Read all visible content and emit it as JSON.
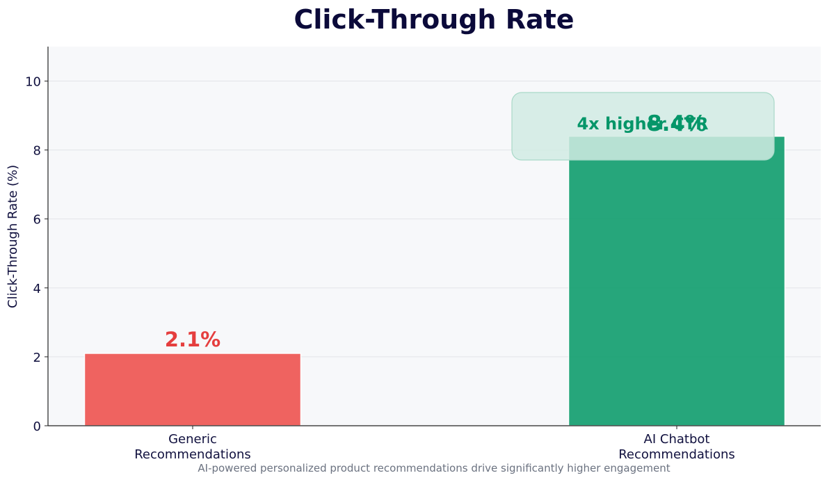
{
  "chart_data": {
    "type": "bar",
    "title": "Click-Through Rate",
    "subtitle": "AI-powered personalized product recommendations drive significantly higher engagement",
    "xlabel": "",
    "ylabel": "Click-Through Rate (%)",
    "ylim": [
      0,
      11
    ],
    "yticks": [
      0,
      2,
      4,
      6,
      8,
      10
    ],
    "grid": true,
    "categories": [
      "Generic\nRecommendations",
      "AI Chatbot\nRecommendations"
    ],
    "values": [
      2.1,
      8.4
    ],
    "value_labels": [
      "2.1%",
      "8.4%"
    ],
    "colors": [
      "#ef5350",
      "#109e6e"
    ],
    "annotation": {
      "text": "4x higher CTR",
      "color": "#059669"
    }
  },
  "colors": {
    "title": "#0b0a3a",
    "axis_text": "#10103e",
    "plot_bg": "#f7f8fa",
    "grid": "#e2e4e8",
    "subtitle": "#6b7280"
  }
}
